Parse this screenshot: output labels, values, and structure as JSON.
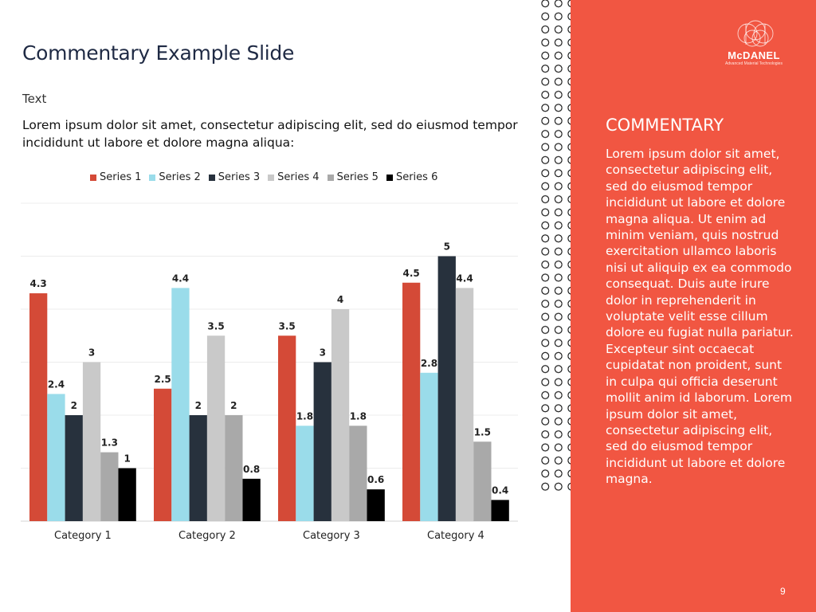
{
  "slide": {
    "title": "Commentary Example Slide",
    "subtitle": "Text",
    "intro": "Lorem ipsum dolor sit amet, consectetur adipiscing elit, sed do eiusmod tempor incididunt ut labore et dolore magna aliqua:",
    "page_number": "9"
  },
  "logo": {
    "name": "McDANEL",
    "tagline": "Advanced Material Technologies"
  },
  "commentary": {
    "heading": "COMMENTARY",
    "body": "Lorem ipsum dolor sit amet, consectetur adipiscing elit, sed do eiusmod tempor incididunt ut labore et dolore magna aliqua. Ut enim ad minim veniam, quis nostrud exercitation ullamco laboris nisi ut aliquip ex ea commodo consequat. Duis aute irure dolor in reprehenderit in voluptate velit esse cillum dolore eu fugiat nulla pariatur. Excepteur sint occaecat cupidatat non proident, sunt in culpa qui officia deserunt mollit anim id laborum. Lorem ipsum dolor sit amet, consectetur adipiscing elit, sed do eiusmod tempor incididunt ut labore et dolore magna."
  },
  "colors": {
    "accent": "#f15642",
    "series1": "#d44a37",
    "series2": "#9adcea",
    "series3": "#27313d",
    "series4": "#c9c9c9",
    "series5": "#a9a9a9",
    "series6": "#000000"
  },
  "chart_data": {
    "type": "bar",
    "title": "",
    "xlabel": "",
    "ylabel": "",
    "ylim": [
      0,
      6
    ],
    "grid": true,
    "legend_position": "top",
    "categories": [
      "Category 1",
      "Category 2",
      "Category 3",
      "Category 4"
    ],
    "series": [
      {
        "name": "Series 1",
        "color": "#d44a37",
        "values": [
          4.3,
          2.5,
          3.5,
          4.5
        ],
        "labels": [
          "4.3",
          "2.5",
          "3.5",
          "4.5"
        ]
      },
      {
        "name": "Series 2",
        "color": "#9adcea",
        "values": [
          2.4,
          4.4,
          1.8,
          2.8
        ],
        "labels": [
          "2.4",
          "4.4",
          "1.8",
          "2.8"
        ]
      },
      {
        "name": "Series 3",
        "color": "#27313d",
        "values": [
          2,
          2,
          3,
          5
        ],
        "labels": [
          "2",
          "2",
          "3",
          "5"
        ]
      },
      {
        "name": "Series 4",
        "color": "#c9c9c9",
        "values": [
          3,
          3.5,
          4,
          4.4
        ],
        "labels": [
          "3",
          "3.5",
          "4",
          "4.4"
        ]
      },
      {
        "name": "Series 5",
        "color": "#a9a9a9",
        "values": [
          1.3,
          2,
          1.8,
          1.5
        ],
        "labels": [
          "1.3",
          "2",
          "1.8",
          "1.5"
        ]
      },
      {
        "name": "Series 6",
        "color": "#000000",
        "values": [
          1,
          0.8,
          0.6,
          0.4
        ],
        "labels": [
          "1",
          "0.8",
          "0.6",
          "0.4"
        ]
      }
    ]
  }
}
